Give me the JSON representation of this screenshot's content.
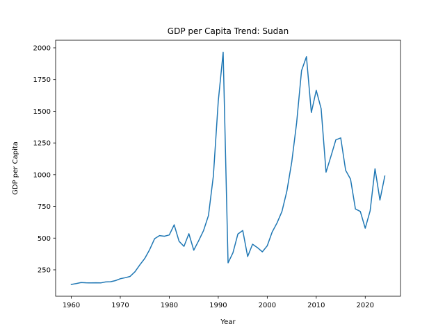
{
  "chart_data": {
    "type": "line",
    "title": "GDP per Capita Trend: Sudan",
    "xlabel": "Year",
    "ylabel": "GDP per Capita",
    "xlim": [
      1956.8,
      2027.2
    ],
    "ylim": [
      42,
      2060
    ],
    "xticks": [
      1960,
      1970,
      1980,
      1990,
      2000,
      2010,
      2020
    ],
    "yticks": [
      250,
      500,
      750,
      1000,
      1250,
      1500,
      1750,
      2000
    ],
    "grid": false,
    "colors": {
      "line": "#1f77b4"
    },
    "series": [
      {
        "x": [
          1960,
          1961,
          1962,
          1963,
          1964,
          1965,
          1966,
          1967,
          1968,
          1969,
          1970,
          1971,
          1972,
          1973,
          1974,
          1975,
          1976,
          1977,
          1978,
          1979,
          1980,
          1981,
          1982,
          1983,
          1984,
          1985,
          1986,
          1987,
          1988,
          1989,
          1990,
          1991,
          1992,
          1993,
          1994,
          1995,
          1996,
          1997,
          1998,
          1999,
          2000,
          2001,
          2002,
          2003,
          2004,
          2005,
          2006,
          2007,
          2008,
          2009,
          2010,
          2011,
          2012,
          2013,
          2014,
          2015,
          2016,
          2017,
          2018,
          2019,
          2020,
          2021,
          2022,
          2023,
          2024
        ],
        "y": [
          135,
          142,
          150,
          148,
          147,
          148,
          147,
          155,
          156,
          165,
          180,
          188,
          198,
          235,
          290,
          340,
          410,
          495,
          520,
          515,
          525,
          605,
          475,
          435,
          535,
          405,
          480,
          560,
          678,
          990,
          1580,
          1965,
          305,
          385,
          532,
          560,
          355,
          452,
          425,
          392,
          440,
          548,
          620,
          710,
          870,
          1100,
          1410,
          1820,
          1930,
          1490,
          1665,
          1520,
          1020,
          1145,
          1275,
          1290,
          1035,
          965,
          730,
          710,
          578,
          715,
          1047,
          800,
          990
        ]
      }
    ]
  }
}
